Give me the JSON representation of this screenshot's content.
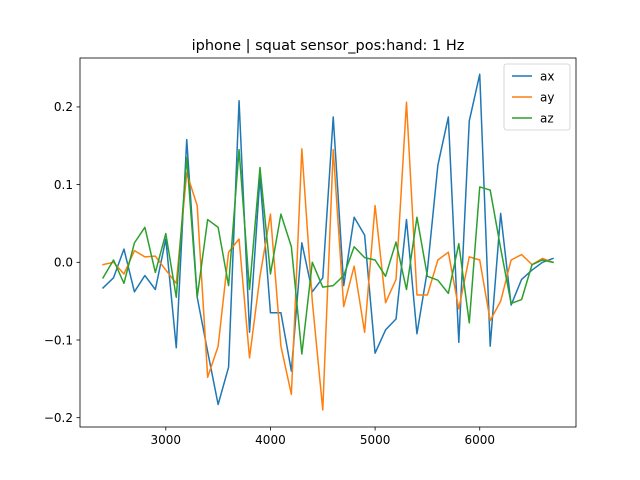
{
  "chart_data": {
    "type": "line",
    "title": "iphone | squat sensor_pos:hand: 1 Hz",
    "xlabel": "",
    "ylabel": "",
    "xlim": [
      2180,
      6920
    ],
    "ylim": [
      -0.212,
      0.263
    ],
    "xticks": [
      3000,
      4000,
      5000,
      6000
    ],
    "xtick_labels": [
      "3000",
      "4000",
      "5000",
      "6000"
    ],
    "yticks": [
      -0.2,
      -0.1,
      0.0,
      0.1,
      0.2
    ],
    "ytick_labels": [
      "−0.2",
      "−0.1",
      "0.0",
      "0.1",
      "0.2"
    ],
    "grid": false,
    "legend_position": "top-right",
    "x": [
      2400,
      2500,
      2600,
      2700,
      2800,
      2900,
      3000,
      3100,
      3200,
      3300,
      3400,
      3500,
      3600,
      3700,
      3800,
      3900,
      4000,
      4100,
      4200,
      4300,
      4400,
      4500,
      4600,
      4700,
      4800,
      4900,
      5000,
      5100,
      5200,
      5300,
      5400,
      5500,
      5600,
      5700,
      5800,
      5900,
      6000,
      6100,
      6200,
      6300,
      6400,
      6500,
      6600,
      6700
    ],
    "series": [
      {
        "name": "ax",
        "color": "#1f77b4",
        "values": [
          -0.033,
          -0.02,
          0.017,
          -0.038,
          -0.017,
          -0.035,
          0.03,
          -0.11,
          0.158,
          -0.045,
          -0.115,
          -0.183,
          -0.135,
          0.208,
          -0.09,
          0.11,
          -0.065,
          -0.065,
          -0.14,
          0.025,
          -0.038,
          -0.02,
          0.187,
          -0.03,
          0.058,
          0.035,
          -0.117,
          -0.087,
          -0.073,
          0.055,
          -0.092,
          -0.01,
          0.125,
          0.187,
          -0.103,
          0.182,
          0.242,
          -0.108,
          0.063,
          -0.055,
          -0.022,
          -0.01,
          0.0,
          0.005
        ]
      },
      {
        "name": "ay",
        "color": "#ff7f0e",
        "values": [
          -0.003,
          0.0,
          -0.015,
          0.015,
          0.007,
          0.008,
          -0.01,
          -0.027,
          0.115,
          0.073,
          -0.148,
          -0.108,
          0.013,
          0.03,
          -0.123,
          -0.018,
          0.062,
          -0.108,
          -0.17,
          0.146,
          -0.05,
          -0.19,
          0.145,
          -0.057,
          -0.005,
          -0.09,
          0.073,
          -0.052,
          -0.022,
          0.206,
          -0.042,
          -0.042,
          0.003,
          0.013,
          -0.06,
          0.007,
          0.003,
          -0.075,
          -0.05,
          0.003,
          0.01,
          -0.003,
          0.005,
          0.0
        ]
      },
      {
        "name": "az",
        "color": "#2ca02c",
        "values": [
          -0.02,
          0.003,
          -0.027,
          0.025,
          0.045,
          -0.013,
          0.037,
          -0.045,
          0.135,
          -0.045,
          0.055,
          0.045,
          -0.03,
          0.145,
          -0.035,
          0.122,
          -0.015,
          0.062,
          0.02,
          -0.118,
          0.0,
          -0.032,
          -0.03,
          -0.017,
          0.02,
          0.006,
          0.003,
          -0.018,
          0.026,
          -0.035,
          0.058,
          -0.018,
          -0.023,
          -0.04,
          0.024,
          -0.078,
          0.097,
          0.093,
          0.018,
          -0.053,
          -0.048,
          -0.003,
          0.003,
          0.0
        ]
      }
    ]
  }
}
